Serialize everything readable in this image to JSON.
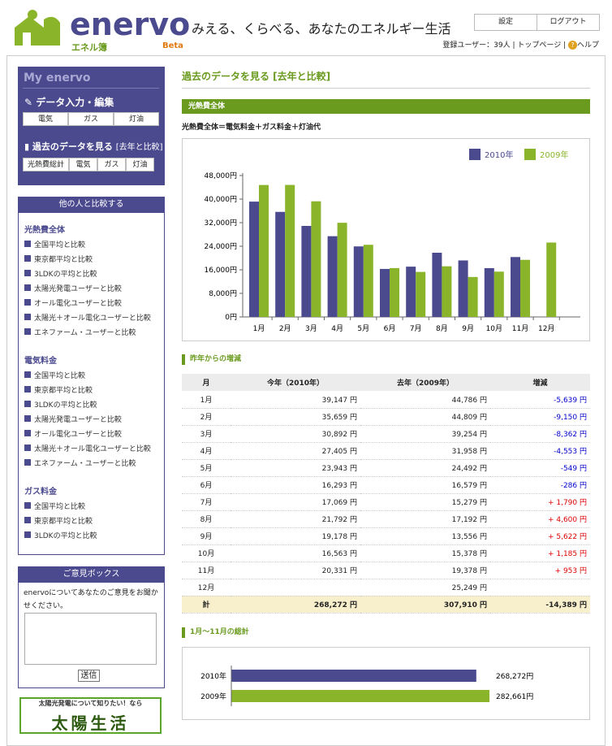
{
  "header": {
    "logo": "enervo",
    "logo_sub": "エネル簿",
    "badge": "Beta",
    "tagline": "みえる、くらべる、あなたのエネルギー生活",
    "buttons": [
      "設定",
      "ログアウト"
    ],
    "user_count": "登録ユーザー：39人",
    "links": [
      "トップページ",
      "ヘルプ"
    ]
  },
  "sidebar": {
    "my_title": "My enervo",
    "input_title": "データ入力・編集",
    "input_buttons": [
      "電気",
      "ガス",
      "灯油"
    ],
    "past_title": "過去のデータを見る",
    "past_sub": "[去年と比較]",
    "past_buttons": [
      "光熱費総計",
      "電気",
      "ガス",
      "灯油"
    ],
    "compare": {
      "title": "他の人と比較する",
      "sections": [
        {
          "heading": "光熱費全体",
          "links": [
            "全国平均と比較",
            "東京都平均と比較",
            "3LDKの平均と比較",
            "太陽光発電ユーザーと比較",
            "オール電化ユーザーと比較",
            "太陽光＋オール電化ユーザーと比較",
            "エネファーム・ユーザーと比較"
          ]
        },
        {
          "heading": "電気料金",
          "links": [
            "全国平均と比較",
            "東京都平均と比較",
            "3LDKの平均と比較",
            "太陽光発電ユーザーと比較",
            "オール電化ユーザーと比較",
            "太陽光＋オール電化ユーザーと比較",
            "エネファーム・ユーザーと比較"
          ]
        },
        {
          "heading": "ガス料金",
          "links": [
            "全国平均と比較",
            "東京都平均と比較",
            "3LDKの平均と比較"
          ]
        }
      ]
    },
    "feedback": {
      "title": "ご意見ボックス",
      "text": "enervoについてあなたのご意見をお聞かせください。",
      "button": "送信"
    },
    "banner": {
      "caption": "太陽光発電について知りたい！なら",
      "title": "太陽生活"
    }
  },
  "main": {
    "title": "過去のデータを見る [去年と比較]",
    "section": "光熱費全体",
    "formula": "光熱費全体＝電気料金＋ガス料金＋灯油代",
    "table_title": "昨年からの増減",
    "summary_title": "1月～11月の総計",
    "table": {
      "header": [
        "月",
        "今年（2010年）",
        "去年（2009年）",
        "増減"
      ],
      "rows": [
        [
          "1月",
          "39,147 円",
          "44,786 円",
          "-5,639 円"
        ],
        [
          "2月",
          "35,659 円",
          "44,809 円",
          "-9,150 円"
        ],
        [
          "3月",
          "30,892 円",
          "39,254 円",
          "-8,362 円"
        ],
        [
          "4月",
          "27,405 円",
          "31,958 円",
          "-4,553 円"
        ],
        [
          "5月",
          "23,943 円",
          "24,492 円",
          "-549 円"
        ],
        [
          "6月",
          "16,293 円",
          "16,579 円",
          "-286 円"
        ],
        [
          "7月",
          "17,069 円",
          "15,279 円",
          "+ 1,790 円"
        ],
        [
          "8月",
          "21,792 円",
          "17,192 円",
          "+ 4,600 円"
        ],
        [
          "9月",
          "19,178 円",
          "13,556 円",
          "+ 5,622 円"
        ],
        [
          "10月",
          "16,563 円",
          "15,378 円",
          "+ 1,185 円"
        ],
        [
          "11月",
          "20,331 円",
          "19,378 円",
          "+ 953 円"
        ],
        [
          "12月",
          null,
          "25,249 円",
          null
        ]
      ],
      "total": [
        "計",
        "268,272 円",
        "307,910 円",
        "-14,389 円"
      ]
    }
  },
  "chart_data": [
    {
      "type": "bar",
      "categories": [
        "1月",
        "2月",
        "3月",
        "4月",
        "5月",
        "6月",
        "7月",
        "8月",
        "9月",
        "10月",
        "11月",
        "12月"
      ],
      "series": [
        {
          "name": "2010年",
          "color": "#4b4a8f",
          "values": [
            39147,
            35659,
            30892,
            27405,
            23943,
            16293,
            17069,
            21792,
            19178,
            16563,
            20331,
            null
          ]
        },
        {
          "name": "2009年",
          "color": "#8ab52a",
          "values": [
            44786,
            44809,
            39254,
            31958,
            24492,
            16579,
            15279,
            17192,
            13556,
            15378,
            19378,
            25249
          ]
        }
      ],
      "ylim": [
        0,
        48000
      ],
      "yticks": [
        {
          "value": 0,
          "label": "0円"
        },
        {
          "value": 8000,
          "label": "8,000円"
        },
        {
          "value": 16000,
          "label": "16,000円"
        },
        {
          "value": 24000,
          "label": "24,000円"
        },
        {
          "value": 32000,
          "label": "32,000円"
        },
        {
          "value": 40000,
          "label": "40,000円"
        },
        {
          "value": 48000,
          "label": "48,000円"
        }
      ],
      "legend": "top-right"
    },
    {
      "type": "barh",
      "categories": [
        "2010年",
        "2009年"
      ],
      "values": [
        268272,
        282661
      ],
      "value_labels": [
        "268,272円",
        "282,661円"
      ],
      "colors": [
        "#4b4a8f",
        "#8ab52a"
      ]
    }
  ]
}
